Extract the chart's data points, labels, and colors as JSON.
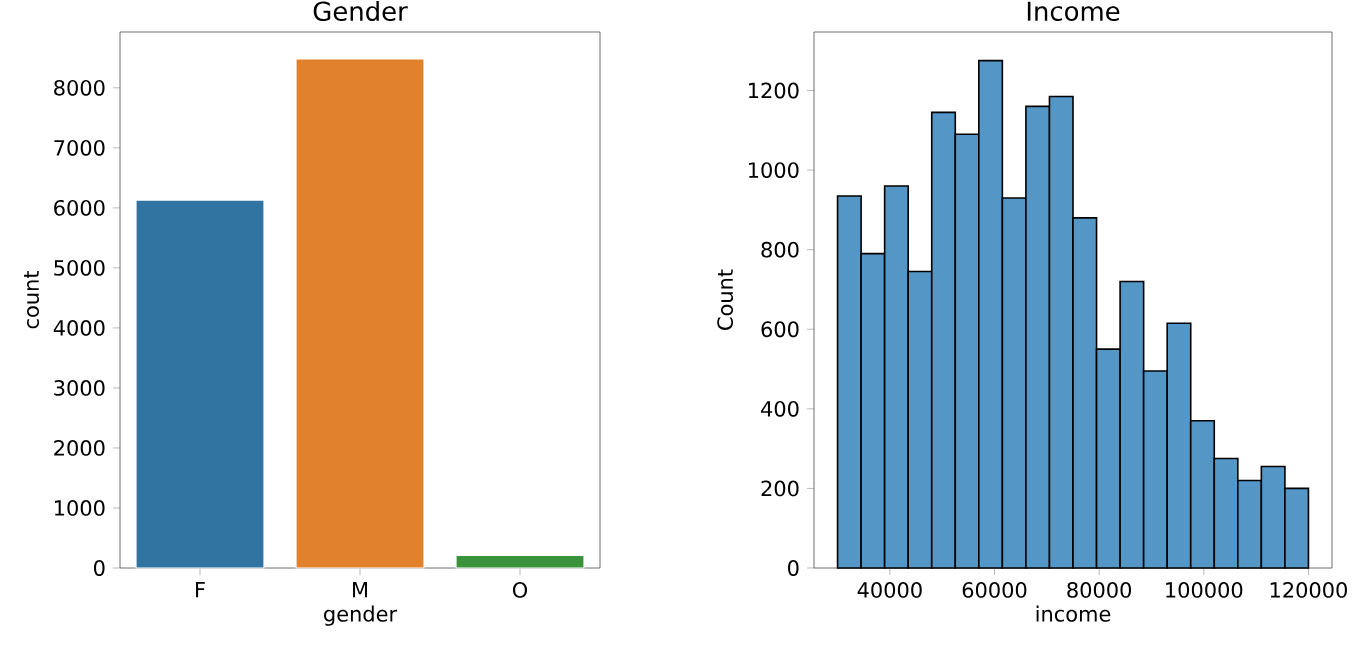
{
  "chart_data": [
    {
      "type": "bar",
      "title": "Gender",
      "xlabel": "gender",
      "ylabel": "count",
      "categories": [
        "F",
        "M",
        "O"
      ],
      "values": [
        6130,
        8480,
        210
      ],
      "colors": [
        "#3274a1",
        "#e1812c",
        "#3a923a"
      ],
      "ylim": [
        0,
        8930
      ],
      "yticks": [
        0,
        1000,
        2000,
        3000,
        4000,
        5000,
        6000,
        7000,
        8000
      ]
    },
    {
      "type": "histogram",
      "title": "Income",
      "xlabel": "income",
      "ylabel": "Count",
      "bins": [
        30000,
        34500,
        39000,
        43500,
        48000,
        52500,
        57000,
        61500,
        66000,
        70500,
        75000,
        79500,
        84000,
        88500,
        93000,
        97500,
        102000,
        106500,
        111000,
        115500,
        120000
      ],
      "values": [
        935,
        790,
        960,
        745,
        1145,
        1090,
        1275,
        930,
        1160,
        1185,
        880,
        550,
        720,
        495,
        615,
        370,
        275,
        220,
        255,
        200
      ],
      "color": "#5497c7",
      "xlim": [
        25500,
        124500
      ],
      "xticks": [
        40000,
        60000,
        80000,
        100000,
        120000
      ],
      "ylim": [
        0,
        1347
      ],
      "yticks": [
        0,
        200,
        400,
        600,
        800,
        1000,
        1200
      ]
    }
  ]
}
